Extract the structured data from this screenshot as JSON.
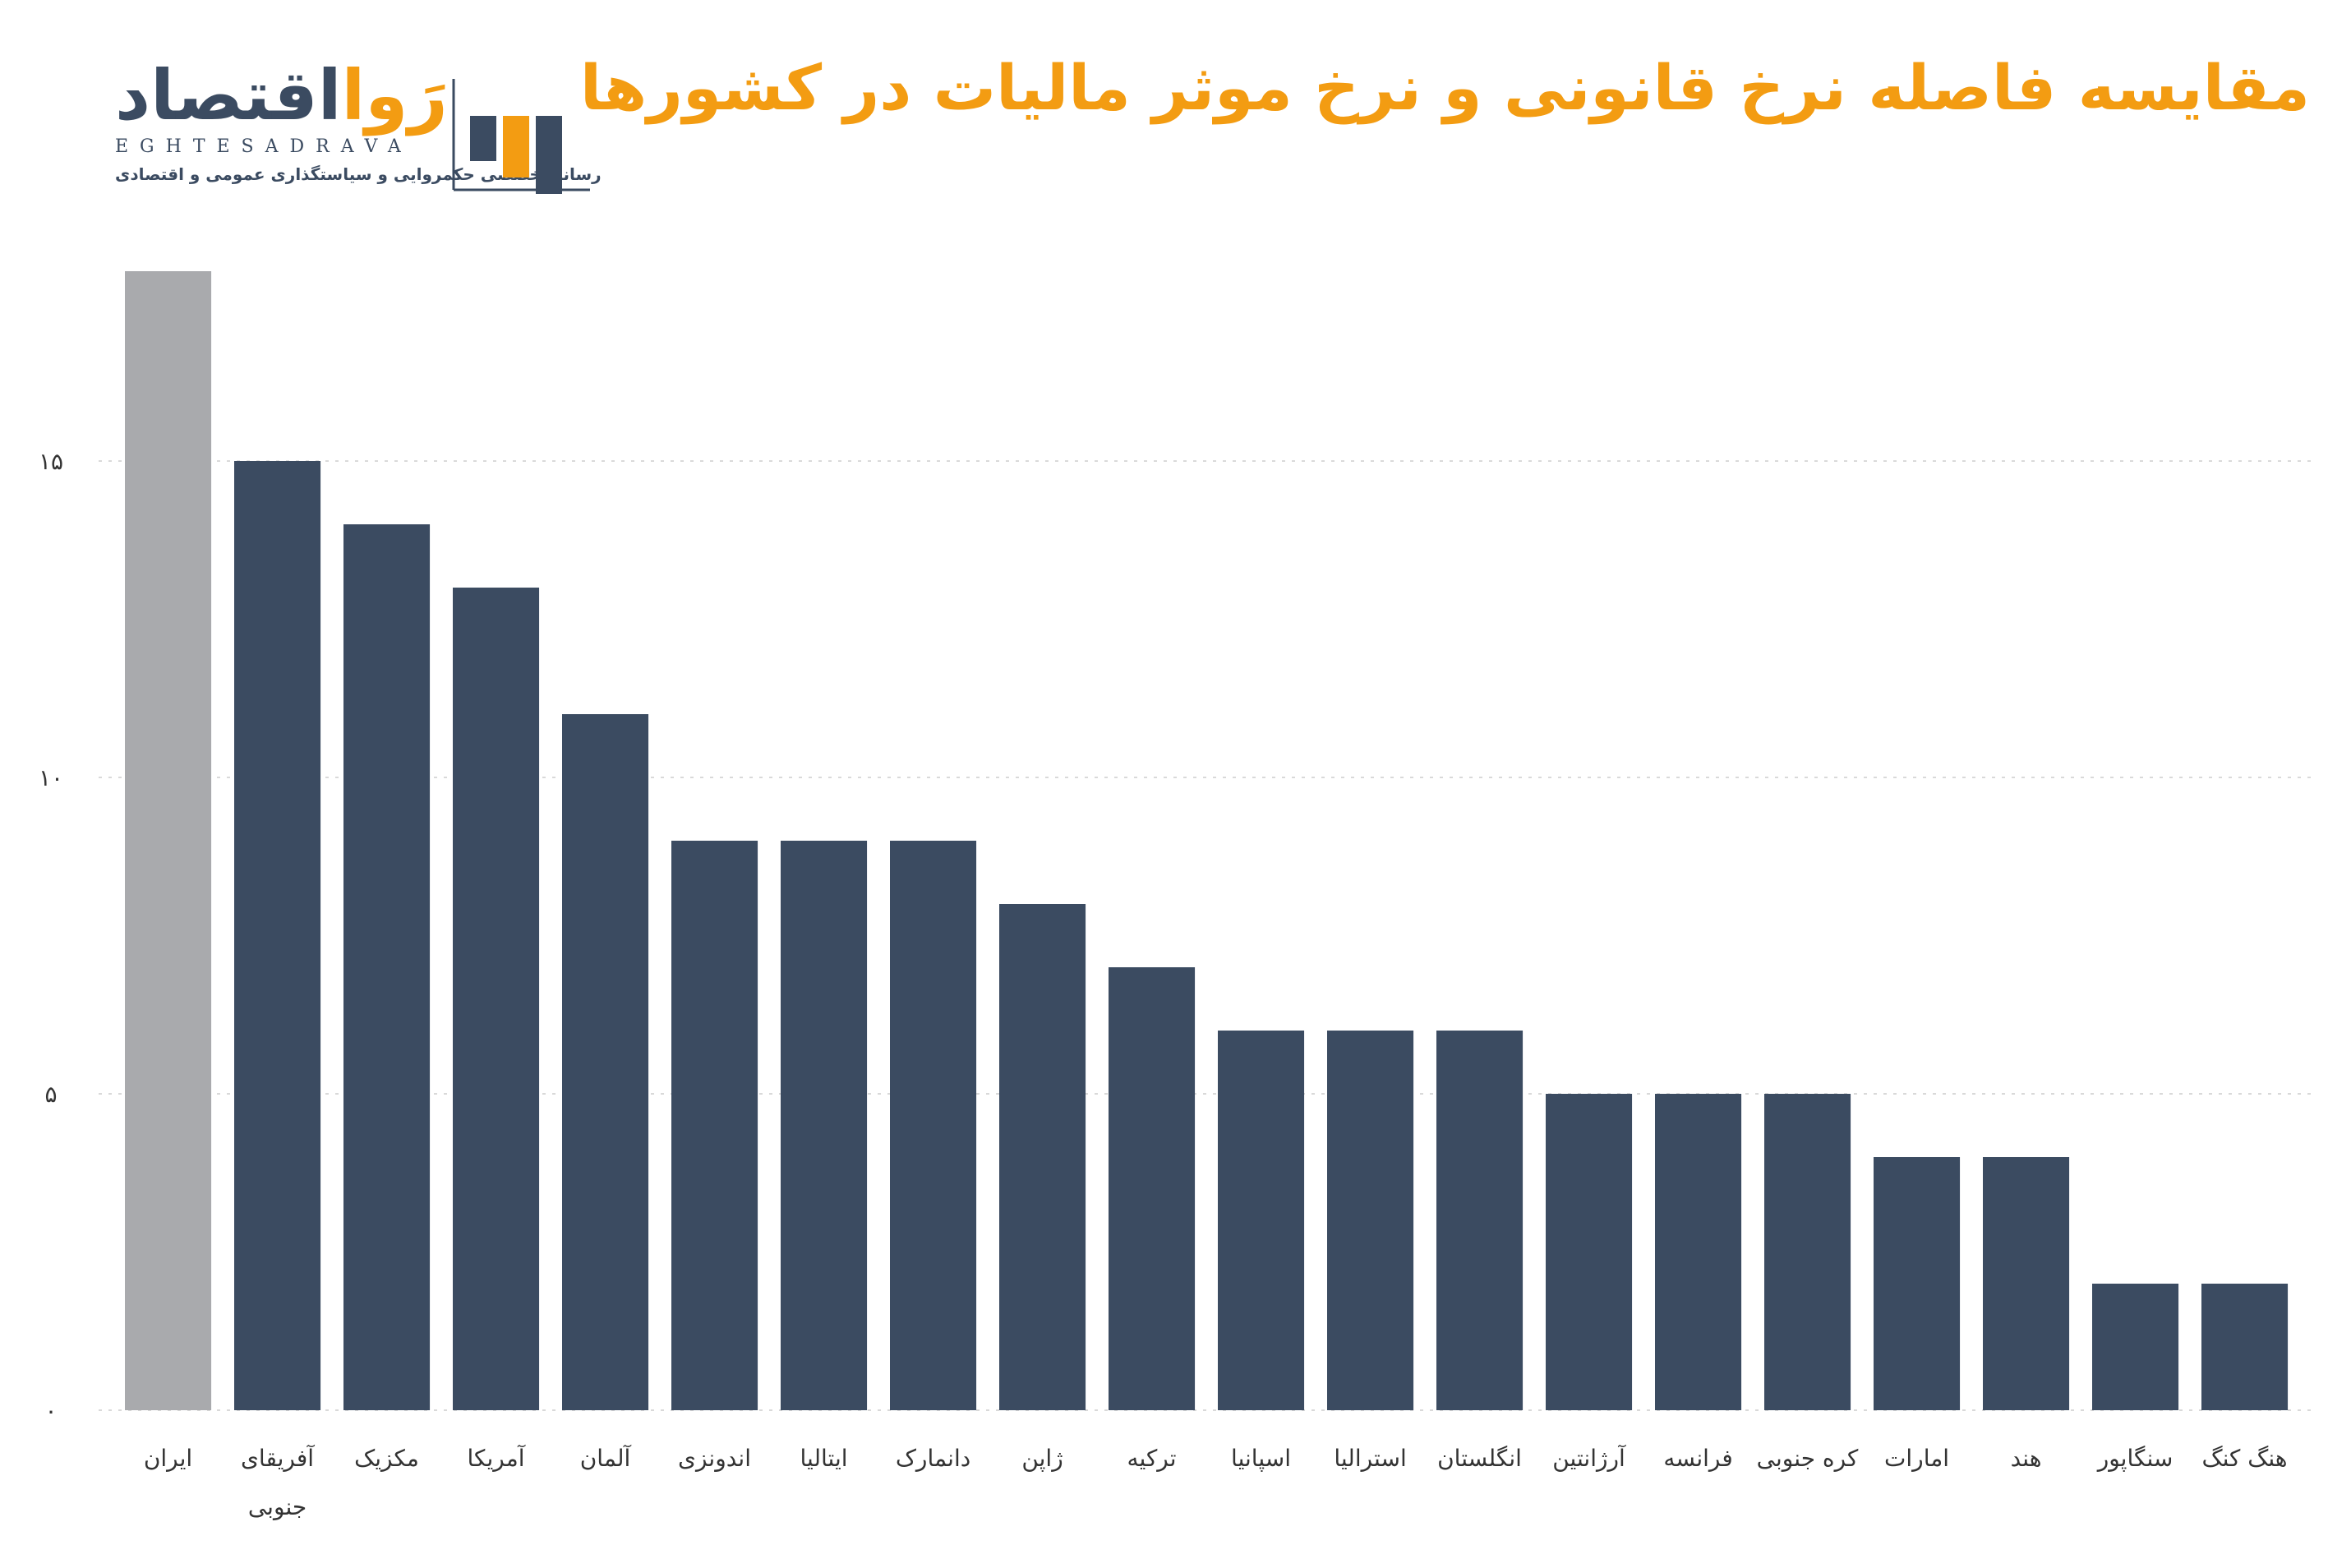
{
  "brand": {
    "name_fa_main": "اقتصاد",
    "name_fa_accent": "رَوا",
    "name_en": "EGHTESADRAVA",
    "tagline": "رسانه تخصصی حکمروایی و سیاستگذاری عمومی و اقتصادی",
    "colors": {
      "accent": "#f39c12",
      "dark": "#3b4b61"
    }
  },
  "chart_data": {
    "type": "bar",
    "title": "مقایسه فاصله نرخ قانونی و نرخ موثر مالیات در کشورها",
    "categories": [
      "ایران",
      "آفریقای جنوبی",
      "مکزیک",
      "آمریکا",
      "آلمان",
      "اندونزی",
      "ایتالیا",
      "دانمارک",
      "ژاپن",
      "ترکیه",
      "اسپانیا",
      "استرالیا",
      "انگلستان",
      "آرژانتین",
      "فرانسه",
      "کره جنوبی",
      "امارات",
      "هند",
      "سنگاپور",
      "هنگ کنگ"
    ],
    "category_lines": [
      [
        "ایران"
      ],
      [
        "آفریقای",
        "جنوبی"
      ],
      [
        "مکزیک"
      ],
      [
        "آمریکا"
      ],
      [
        "آلمان"
      ],
      [
        "اندونزی"
      ],
      [
        "ایتالیا"
      ],
      [
        "دانمارک"
      ],
      [
        "ژاپن"
      ],
      [
        "ترکیه"
      ],
      [
        "اسپانیا"
      ],
      [
        "استرالیا"
      ],
      [
        "انگلستان"
      ],
      [
        "آرژانتین"
      ],
      [
        "فرانسه"
      ],
      [
        "کره جنوبی"
      ],
      [
        "امارات"
      ],
      [
        "هند"
      ],
      [
        "سنگاپور"
      ],
      [
        "هنگ کنگ"
      ]
    ],
    "values": [
      18,
      15,
      14,
      13,
      11,
      9,
      9,
      9,
      8,
      7,
      6,
      6,
      6,
      5,
      5,
      5,
      4,
      4,
      2,
      2
    ],
    "highlight_index": 0,
    "colors": {
      "bar": "#3b4b61",
      "highlight": "#a9aaad",
      "grid": "#d9d9d9",
      "tick_text": "#333333"
    },
    "yticks": [
      0,
      5,
      10,
      15
    ],
    "ytick_labels": [
      "۰",
      "۵",
      "۱۰",
      "۱۵"
    ],
    "ylim": [
      0,
      18
    ],
    "grid": true,
    "xlabel": "",
    "ylabel": ""
  }
}
